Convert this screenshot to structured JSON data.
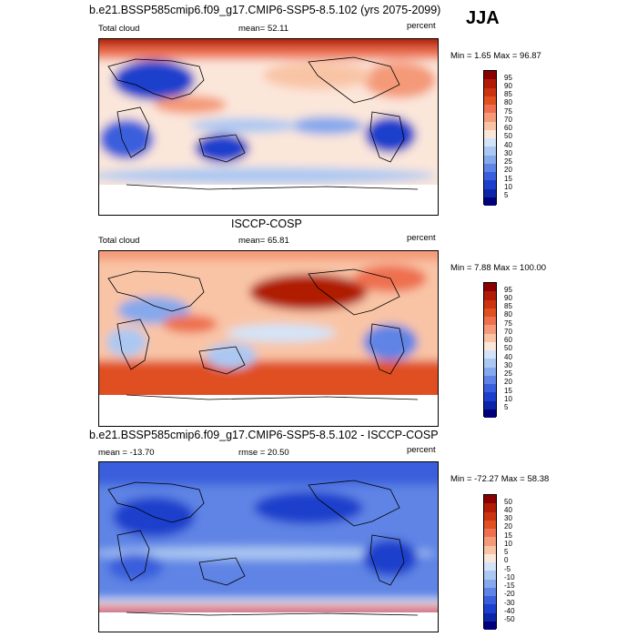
{
  "season": "JJA",
  "panels": [
    {
      "title": "b.e21.BSSP585cmip6.f09_g17.CMIP6-SSP5-8.5.102 (yrs 2075-2099)",
      "left_label": "Total cloud",
      "center_label": "mean=  52.11",
      "right_label": "percent",
      "minmax": "Min =   1.65 Max =  96.87",
      "levels": [
        "95",
        "90",
        "85",
        "80",
        "75",
        "70",
        "60",
        "50",
        "40",
        "30",
        "25",
        "20",
        "15",
        "10",
        "5"
      ],
      "colors": [
        "#8b0000",
        "#b01c05",
        "#cc3311",
        "#e05020",
        "#ee7050",
        "#f49a78",
        "#f9c4a6",
        "#fbe6da",
        "#d3e4f8",
        "#abc8f2",
        "#86a8ec",
        "#5f84e5",
        "#3a5fdc",
        "#1c3fcc",
        "#0d25a8",
        "#00007a"
      ]
    },
    {
      "title": "ISCCP-COSP",
      "left_label": "Total cloud",
      "center_label": "mean=  65.81",
      "right_label": "percent",
      "minmax": "Min =   7.88 Max = 100.00",
      "levels": [
        "95",
        "90",
        "85",
        "80",
        "75",
        "70",
        "60",
        "50",
        "40",
        "30",
        "25",
        "20",
        "15",
        "10",
        "5"
      ],
      "colors": [
        "#8b0000",
        "#b01c05",
        "#cc3311",
        "#e05020",
        "#ee7050",
        "#f49a78",
        "#f9c4a6",
        "#fbe6da",
        "#d3e4f8",
        "#abc8f2",
        "#86a8ec",
        "#5f84e5",
        "#3a5fdc",
        "#1c3fcc",
        "#0d25a8",
        "#00007a"
      ]
    },
    {
      "title": "b.e21.BSSP585cmip6.f09_g17.CMIP6-SSP5-8.5.102 - ISCCP-COSP",
      "left_label": "mean = -13.70",
      "center_label": "rmse =  20.50",
      "right_label": "percent",
      "minmax": "Min = -72.27 Max =  58.38",
      "levels": [
        "50",
        "40",
        "30",
        "20",
        "15",
        "10",
        "5",
        "0",
        "-5",
        "-10",
        "-15",
        "-20",
        "-30",
        "-40",
        "-50"
      ],
      "colors": [
        "#8b0000",
        "#b01c05",
        "#cc3311",
        "#e05020",
        "#ee7050",
        "#f49a78",
        "#f9c4a6",
        "#fbe6da",
        "#d3e4f8",
        "#abc8f2",
        "#86a8ec",
        "#5f84e5",
        "#3a5fdc",
        "#1c3fcc",
        "#0d25a8",
        "#00007a"
      ]
    }
  ]
}
